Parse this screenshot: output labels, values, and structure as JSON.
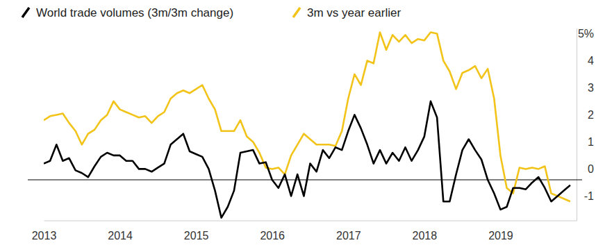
{
  "chart_data": {
    "type": "line",
    "legend": "top",
    "grid": false,
    "x": [
      2013,
      2013.083,
      2013.167,
      2013.25,
      2013.333,
      2013.417,
      2013.5,
      2013.583,
      2013.667,
      2013.75,
      2013.833,
      2013.917,
      2014,
      2014.083,
      2014.167,
      2014.25,
      2014.333,
      2014.417,
      2014.5,
      2014.583,
      2014.667,
      2014.75,
      2014.833,
      2014.917,
      2015,
      2015.083,
      2015.167,
      2015.25,
      2015.333,
      2015.417,
      2015.5,
      2015.583,
      2015.667,
      2015.75,
      2015.833,
      2015.917,
      2016,
      2016.083,
      2016.167,
      2016.25,
      2016.333,
      2016.417,
      2016.5,
      2016.583,
      2016.667,
      2016.75,
      2016.833,
      2016.917,
      2017,
      2017.083,
      2017.167,
      2017.25,
      2017.333,
      2017.417,
      2017.5,
      2017.583,
      2017.667,
      2017.75,
      2017.833,
      2017.917,
      2018,
      2018.083,
      2018.167,
      2018.25,
      2018.333,
      2018.417,
      2018.5,
      2018.583,
      2018.667,
      2018.75,
      2018.833,
      2018.917,
      2019,
      2019.083,
      2019.167,
      2019.25,
      2019.333,
      2019.417,
      2019.5,
      2019.583,
      2019.667,
      2019.75,
      2019.833,
      2019.917
    ],
    "series": [
      {
        "name": "World trade volumes (3m/3m change)",
        "color": "#000000",
        "values": [
          0.6,
          0.7,
          1.3,
          0.7,
          0.8,
          0.35,
          0.25,
          0.1,
          0.5,
          0.85,
          1.0,
          0.9,
          0.9,
          0.7,
          0.7,
          0.4,
          0.4,
          0.3,
          0.45,
          0.6,
          1.3,
          1.5,
          1.7,
          1.05,
          0.95,
          0.85,
          0.4,
          -0.4,
          -1.4,
          -1.0,
          -0.4,
          1.0,
          1.05,
          1.1,
          0.6,
          0.65,
          0.0,
          -0.3,
          0.2,
          -0.6,
          0.2,
          -0.6,
          0.6,
          0.3,
          1.1,
          0.8,
          1.2,
          1.1,
          1.8,
          2.4,
          1.9,
          1.3,
          0.6,
          1.1,
          0.6,
          1.0,
          0.7,
          1.2,
          0.7,
          1.1,
          1.6,
          2.9,
          2.3,
          -0.8,
          -0.8,
          0.2,
          1.1,
          1.5,
          1.1,
          0.75,
          0.0,
          -0.5,
          -1.1,
          -1.0,
          -0.3,
          -0.3,
          -0.35,
          -0.1,
          0.1,
          -0.3,
          -0.8,
          -0.6,
          -0.4,
          -0.2
        ]
      },
      {
        "name": "3m vs year earlier",
        "color": "#f2c318",
        "values": [
          2.2,
          2.35,
          2.4,
          2.45,
          2.1,
          1.8,
          1.3,
          1.7,
          1.85,
          2.2,
          2.4,
          2.9,
          2.6,
          2.5,
          2.4,
          2.3,
          2.35,
          2.1,
          2.35,
          2.5,
          3.0,
          3.2,
          3.3,
          3.2,
          3.35,
          3.5,
          3.0,
          2.6,
          1.8,
          1.8,
          1.8,
          2.2,
          1.6,
          1.4,
          1.0,
          0.45,
          0.4,
          0.45,
          0.2,
          0.9,
          1.3,
          1.7,
          1.5,
          1.3,
          1.3,
          1.3,
          1.25,
          1.8,
          3.0,
          3.9,
          3.5,
          4.4,
          4.3,
          5.45,
          4.8,
          5.35,
          5.1,
          5.35,
          5.05,
          5.2,
          5.15,
          5.45,
          5.4,
          4.4,
          4.0,
          3.35,
          3.95,
          4.05,
          4.2,
          3.75,
          4.1,
          3.0,
          0.9,
          -0.3,
          -0.5,
          0.45,
          0.4,
          0.45,
          0.4,
          0.5,
          -0.5,
          -0.6,
          -0.7,
          -0.8
        ]
      }
    ],
    "xlim": [
      2013,
      2020
    ],
    "xticks": [
      2013,
      2014,
      2015,
      2016,
      2017,
      2018,
      2019
    ],
    "ylim": [
      -1.5,
      5.6
    ],
    "yticks": [
      -1,
      0,
      1,
      2,
      3,
      4,
      {
        "value": 5,
        "label": "5%"
      }
    ]
  }
}
